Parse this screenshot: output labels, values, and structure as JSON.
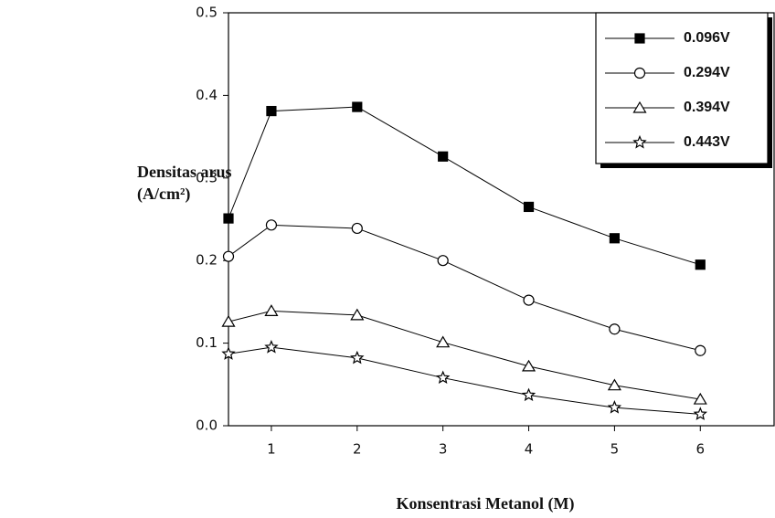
{
  "chart_data": {
    "type": "line",
    "x": [
      0.5,
      1,
      2,
      3,
      4,
      5,
      6
    ],
    "series": [
      {
        "name": "0.096V",
        "color": "#000000",
        "marker": "square-filled",
        "values": [
          0.251,
          0.381,
          0.386,
          0.326,
          0.265,
          0.227,
          0.195
        ]
      },
      {
        "name": "0.294V",
        "color": "#000000",
        "marker": "circle-open",
        "values": [
          0.205,
          0.243,
          0.239,
          0.2,
          0.152,
          0.117,
          0.091
        ]
      },
      {
        "name": "0.394V",
        "color": "#000000",
        "marker": "triangle-open",
        "values": [
          0.126,
          0.139,
          0.134,
          0.101,
          0.072,
          0.049,
          0.032
        ]
      },
      {
        "name": "0.443V",
        "color": "#000000",
        "marker": "star-open",
        "values": [
          0.087,
          0.095,
          0.082,
          0.058,
          0.037,
          0.022,
          0.014
        ]
      }
    ],
    "xlabel": "Konsentrasi Metanol (M)",
    "ylabel": [
      "Densitas arus",
      "(A/cm²)"
    ],
    "xlim": [
      0.5,
      6.86
    ],
    "xticks": [
      1,
      2,
      3,
      4,
      5,
      6
    ],
    "ylim": [
      0,
      0.5
    ],
    "yticks": [
      {
        "value": 0,
        "label": "0.0"
      },
      0.1,
      0.2,
      0.3,
      0.4,
      0.5
    ],
    "legend": "top-right",
    "grid": false
  }
}
